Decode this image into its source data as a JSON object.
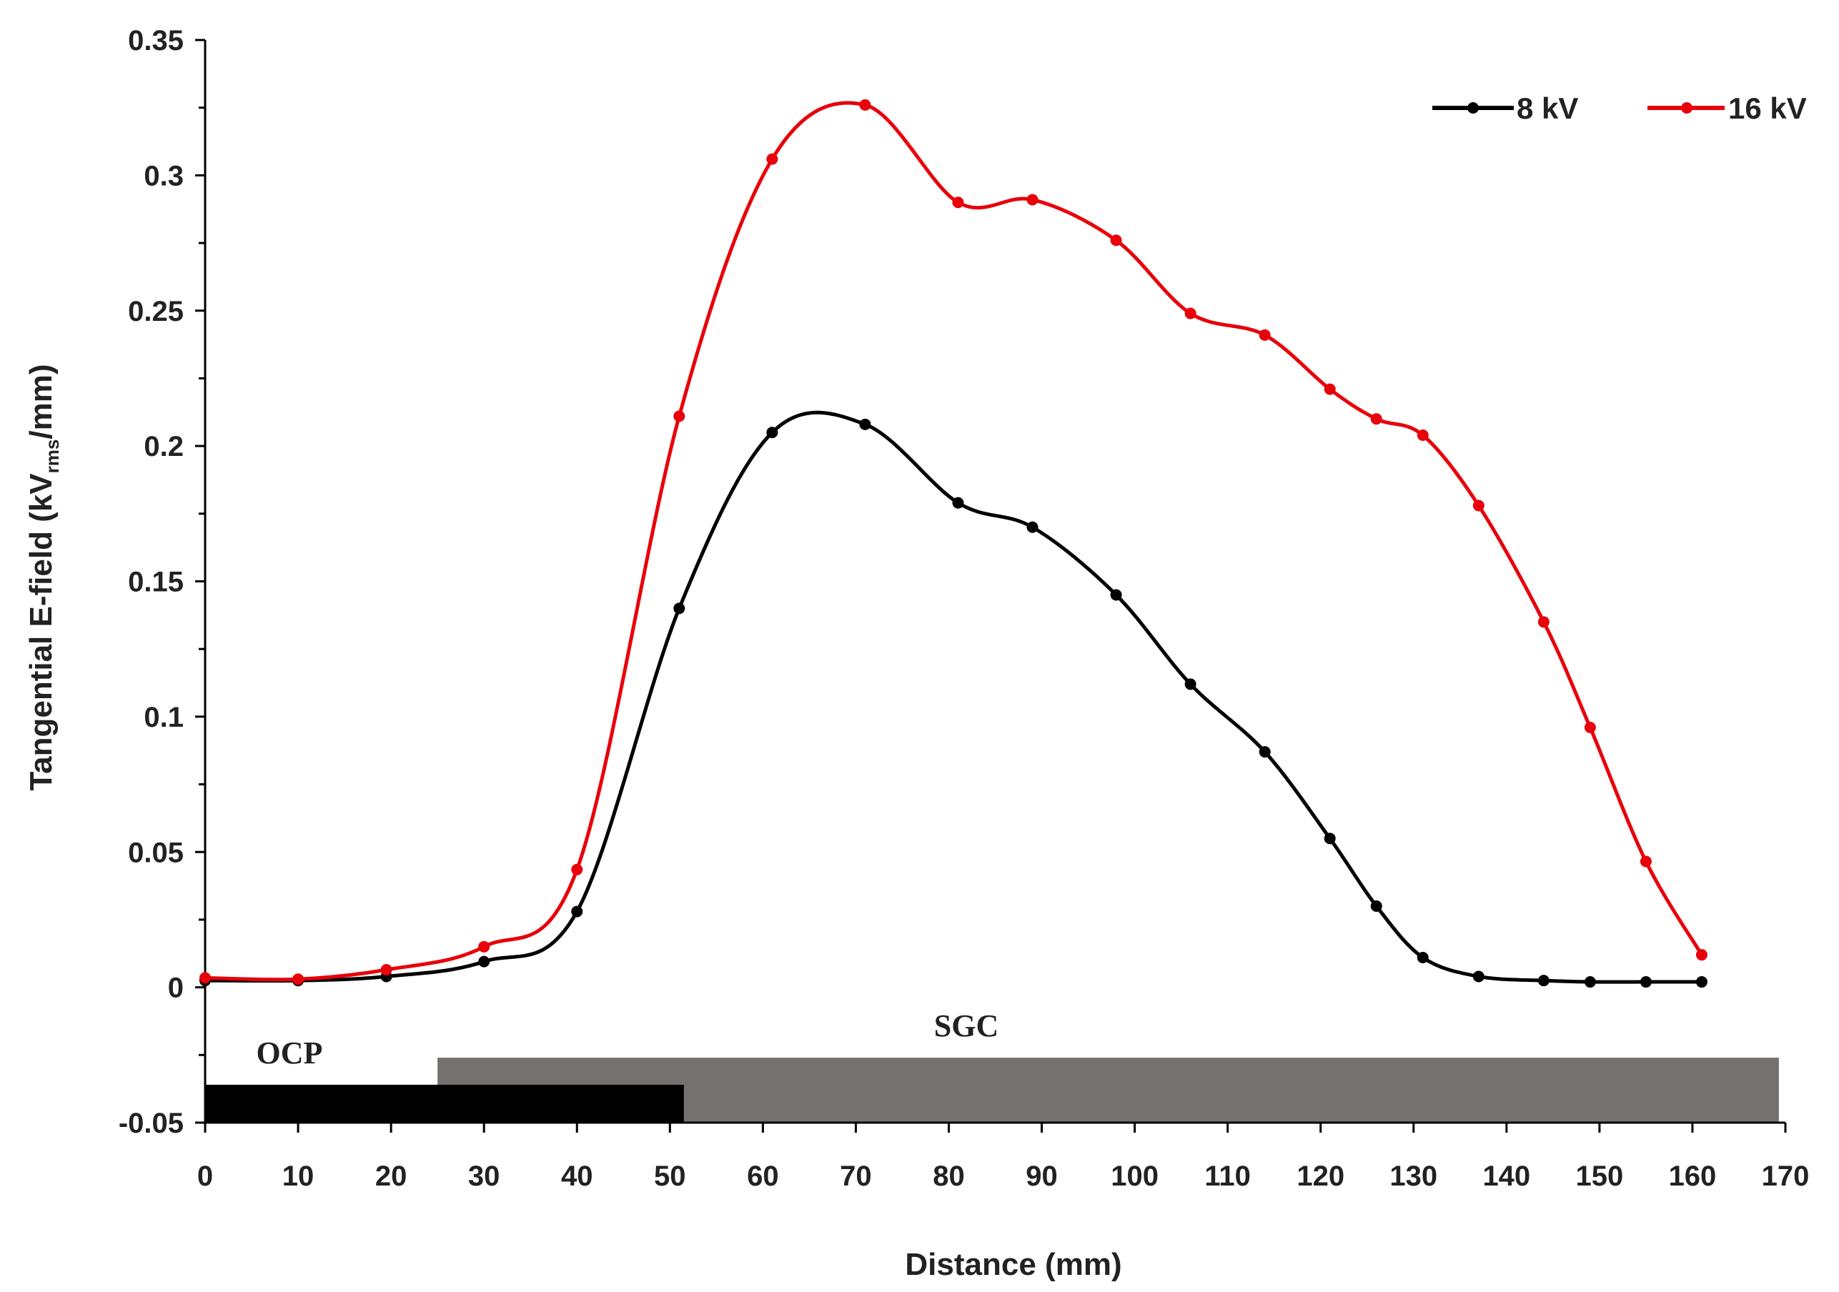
{
  "chart_data": {
    "type": "line",
    "title": "",
    "xlabel": "Distance (mm)",
    "ylabel": {
      "main": "Tangential E-field (kV",
      "subscript": "rms",
      "suffix": "/mm)"
    },
    "xlim": [
      0,
      170
    ],
    "ylim": [
      -0.05,
      0.35
    ],
    "x_ticks": [
      "0",
      "10",
      "20",
      "30",
      "40",
      "50",
      "60",
      "70",
      "80",
      "90",
      "100",
      "110",
      "120",
      "130",
      "140",
      "150",
      "160",
      "170"
    ],
    "y_ticks": [
      "-0.05",
      "0",
      "0.05",
      "0.1",
      "0.15",
      "0.2",
      "0.25",
      "0.3",
      "0.35"
    ],
    "grid": false,
    "legend_position": "top-right",
    "series": [
      {
        "name": "8 kV",
        "color": "#000000",
        "points": [
          [
            0,
            0.0025
          ],
          [
            10,
            0.0025
          ],
          [
            19.5,
            0.004
          ],
          [
            30,
            0.0095
          ],
          [
            40,
            0.028
          ],
          [
            51,
            0.14
          ],
          [
            61,
            0.205
          ],
          [
            71,
            0.208
          ],
          [
            81,
            0.179
          ],
          [
            89,
            0.17
          ],
          [
            98,
            0.145
          ],
          [
            106,
            0.112
          ],
          [
            114,
            0.087
          ],
          [
            121,
            0.055
          ],
          [
            126,
            0.03
          ],
          [
            131,
            0.011
          ],
          [
            137,
            0.004
          ],
          [
            144,
            0.0025
          ],
          [
            149,
            0.002
          ],
          [
            155,
            0.002
          ],
          [
            161,
            0.002
          ]
        ]
      },
      {
        "name": "16 kV",
        "color": "#e8000a",
        "points": [
          [
            0,
            0.0035
          ],
          [
            10,
            0.003
          ],
          [
            19.5,
            0.0065
          ],
          [
            30,
            0.015
          ],
          [
            40,
            0.0435
          ],
          [
            51,
            0.211
          ],
          [
            61,
            0.306
          ],
          [
            71,
            0.326
          ],
          [
            81,
            0.29
          ],
          [
            89,
            0.291
          ],
          [
            98,
            0.276
          ],
          [
            106,
            0.249
          ],
          [
            114,
            0.241
          ],
          [
            121,
            0.221
          ],
          [
            126,
            0.21
          ],
          [
            131,
            0.204
          ],
          [
            137,
            0.178
          ],
          [
            144,
            0.135
          ],
          [
            149,
            0.096
          ],
          [
            155,
            0.0465
          ],
          [
            161,
            0.012
          ]
        ]
      }
    ],
    "regions": [
      {
        "name": "OCP",
        "x_start": 0,
        "x_end": 51.5,
        "y_bottom": -0.05,
        "y_top": -0.036,
        "color": "#000000"
      },
      {
        "name": "SGC",
        "x_start": 25,
        "x_end": 169.3,
        "y_bottom": -0.05,
        "y_top": -0.026,
        "color": "#767171"
      }
    ]
  }
}
